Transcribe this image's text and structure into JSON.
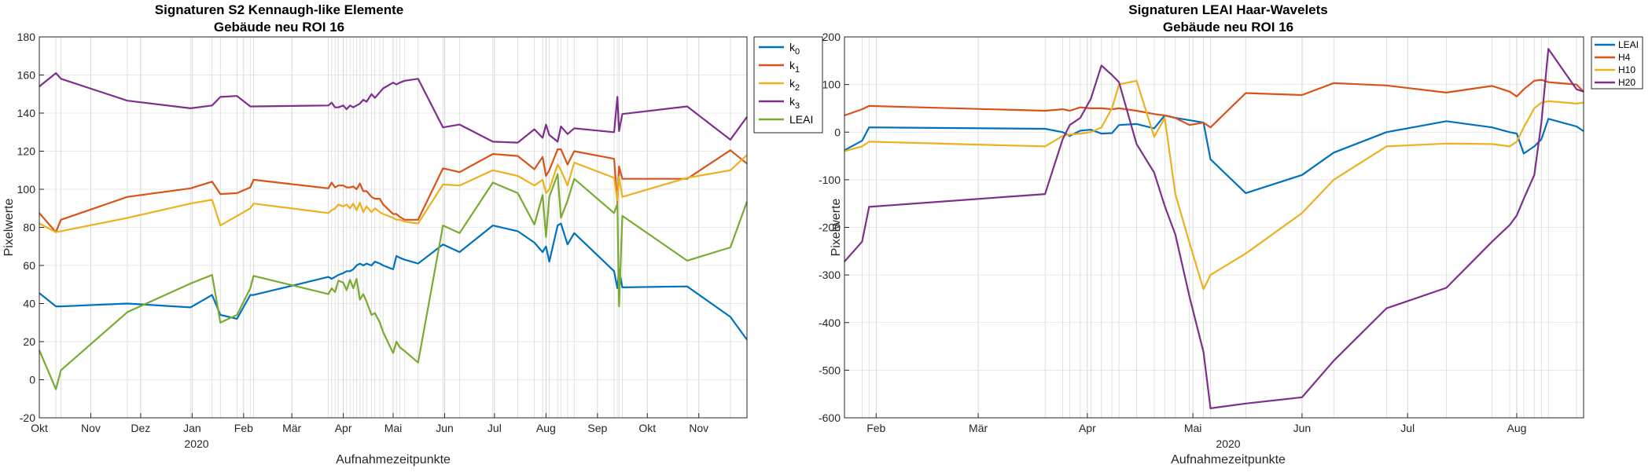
{
  "chart_data": [
    {
      "type": "line",
      "title": "Signaturen S2 Kennaugh-like Elemente",
      "subtitle": "Gebäude neu ROI 16",
      "xlabel": "Aufnahmezeitpunkte",
      "ylabel": "Pixelwerte",
      "x_year_label": "2020",
      "x_unit": "date",
      "xlim": [
        "2019-10-01",
        "2020-11-30"
      ],
      "ylim": [
        -20,
        180
      ],
      "y_ticks": [
        -20,
        0,
        20,
        40,
        60,
        80,
        100,
        120,
        140,
        160,
        180
      ],
      "x_ticks": [
        {
          "date": "2019-10-01",
          "label": "Okt"
        },
        {
          "date": "2019-11-01",
          "label": "Nov"
        },
        {
          "date": "2019-12-01",
          "label": "Dez"
        },
        {
          "date": "2020-01-01",
          "label": "Jan"
        },
        {
          "date": "2020-02-01",
          "label": "Feb"
        },
        {
          "date": "2020-03-01",
          "label": "Mär"
        },
        {
          "date": "2020-04-01",
          "label": "Apr"
        },
        {
          "date": "2020-05-01",
          "label": "Mai"
        },
        {
          "date": "2020-06-01",
          "label": "Jun"
        },
        {
          "date": "2020-07-01",
          "label": "Jul"
        },
        {
          "date": "2020-08-01",
          "label": "Aug"
        },
        {
          "date": "2020-09-01",
          "label": "Sep"
        },
        {
          "date": "2020-10-01",
          "label": "Okt"
        },
        {
          "date": "2020-11-01",
          "label": "Nov"
        }
      ],
      "grid": true,
      "legend_position": "top-right, outside",
      "acquisition_dates": [
        "2019-10-01",
        "2019-10-11",
        "2019-10-14",
        "2019-11-23",
        "2019-12-31",
        "2020-01-13",
        "2020-01-18",
        "2020-01-28",
        "2020-02-05",
        "2020-02-07",
        "2020-03-23",
        "2020-03-25",
        "2020-03-27",
        "2020-03-29",
        "2020-04-01",
        "2020-04-03",
        "2020-04-05",
        "2020-04-07",
        "2020-04-09",
        "2020-04-11",
        "2020-04-13",
        "2020-04-15",
        "2020-04-18",
        "2020-04-20",
        "2020-04-23",
        "2020-04-25",
        "2020-05-01",
        "2020-05-03",
        "2020-05-05",
        "2020-05-08",
        "2020-05-16",
        "2020-05-31",
        "2020-06-10",
        "2020-06-30",
        "2020-07-15",
        "2020-07-25",
        "2020-07-30",
        "2020-08-01",
        "2020-08-03",
        "2020-08-08",
        "2020-08-10",
        "2020-08-14",
        "2020-08-18",
        "2020-09-11",
        "2020-09-13",
        "2020-09-14",
        "2020-09-16",
        "2020-10-25",
        "2020-11-20",
        "2020-11-30"
      ],
      "series": [
        {
          "name": "k0",
          "label_main": "k",
          "label_sub": "0",
          "color": "#0072BD",
          "values": [
            45.5,
            38.5,
            38.5,
            40,
            38,
            44.5,
            34,
            32,
            44.5,
            44.5,
            54,
            53,
            54,
            55,
            56,
            57,
            57,
            58,
            60,
            61,
            60,
            61,
            60,
            62,
            61,
            60,
            58,
            65,
            64,
            63,
            61,
            71,
            67,
            81,
            78,
            72,
            67,
            70,
            62,
            81,
            82,
            71,
            77,
            57,
            48,
            58,
            48.5,
            49,
            33,
            21
          ]
        },
        {
          "name": "k1",
          "label_main": "k",
          "label_sub": "1",
          "color": "#D95319",
          "values": [
            87.5,
            77.5,
            84,
            96,
            100.5,
            104,
            97.5,
            98,
            101,
            105,
            100.5,
            103.5,
            101,
            102,
            102,
            101,
            101,
            101.5,
            100,
            103,
            99,
            99,
            96,
            95,
            95,
            92,
            87,
            87,
            85.5,
            84,
            84,
            111,
            109,
            118.5,
            117.5,
            110.5,
            117,
            107,
            110,
            121,
            121,
            113,
            120,
            116,
            93,
            112,
            105.5,
            105.5,
            120.5,
            113.5
          ]
        },
        {
          "name": "k2",
          "label_main": "k",
          "label_sub": "2",
          "color": "#EDB120",
          "values": [
            82,
            77.5,
            78,
            85,
            92.5,
            94.5,
            81,
            86,
            90,
            92.5,
            87.5,
            89,
            90,
            92,
            91,
            92,
            90,
            92.5,
            89,
            93,
            88,
            91,
            88,
            90,
            88,
            87,
            85,
            84,
            84,
            83,
            82,
            102.5,
            102,
            110,
            107,
            102,
            105,
            98,
            100,
            113,
            110,
            102,
            114,
            106,
            94,
            106.5,
            96,
            106,
            110,
            118
          ]
        },
        {
          "name": "k3",
          "label_main": "k",
          "label_sub": "3",
          "color": "#7E2F8E",
          "values": [
            154,
            161,
            158,
            146.5,
            142.5,
            144,
            148.5,
            149,
            143.5,
            143.5,
            144,
            145.5,
            143,
            143,
            144,
            142,
            144,
            143,
            144,
            145,
            147,
            146,
            150,
            148,
            151,
            153,
            156,
            155,
            156,
            157,
            158,
            132.5,
            134,
            125,
            124.5,
            131.5,
            127,
            134,
            128.5,
            125,
            133,
            129,
            132,
            130,
            148.5,
            130.5,
            139.5,
            143.5,
            126,
            138
          ]
        },
        {
          "name": "LEAI",
          "label_main": "LEAI",
          "label_sub": "",
          "color": "#77AC30",
          "values": [
            15.5,
            -5,
            5,
            35.5,
            50.5,
            55,
            30,
            34,
            48,
            54.5,
            45,
            48,
            46,
            52,
            51,
            47,
            52.5,
            48,
            53,
            42,
            45,
            41,
            34,
            35,
            30,
            25,
            14,
            20,
            17,
            15,
            9,
            81,
            77,
            103.5,
            98,
            81.5,
            97,
            75,
            96,
            108,
            85,
            94,
            105.5,
            87.5,
            92.5,
            38.5,
            86,
            62.5,
            69.5,
            93.5
          ]
        }
      ],
      "legend_entries": [
        {
          "main": "k",
          "sub": "0",
          "color": "#0072BD"
        },
        {
          "main": "k",
          "sub": "1",
          "color": "#D95319"
        },
        {
          "main": "k",
          "sub": "2",
          "color": "#EDB120"
        },
        {
          "main": "k",
          "sub": "3",
          "color": "#7E2F8E"
        },
        {
          "main": "LEAI",
          "sub": "",
          "color": "#77AC30"
        }
      ]
    },
    {
      "type": "line",
      "title": "Signaturen LEAI Haar-Wavelets",
      "subtitle": "Gebäude neu ROI 16",
      "xlabel": "Aufnahmezeitpunkte",
      "ylabel": "Pixelwerte",
      "x_year_label": "2020",
      "x_unit": "date",
      "xlim": [
        "2020-01-23",
        "2020-08-20"
      ],
      "ylim": [
        -600,
        200
      ],
      "y_ticks": [
        -600,
        -500,
        -400,
        -300,
        -200,
        -100,
        0,
        100,
        200
      ],
      "x_ticks": [
        {
          "date": "2020-02-01",
          "label": "Feb"
        },
        {
          "date": "2020-03-01",
          "label": "Mär"
        },
        {
          "date": "2020-04-01",
          "label": "Apr"
        },
        {
          "date": "2020-05-01",
          "label": "Mai"
        },
        {
          "date": "2020-06-01",
          "label": "Jun"
        },
        {
          "date": "2020-07-01",
          "label": "Jul"
        },
        {
          "date": "2020-08-01",
          "label": "Aug"
        }
      ],
      "grid": true,
      "legend_position": "top-right, outside",
      "acquisition_dates": [
        "2020-01-23",
        "2020-01-28",
        "2020-01-30",
        "2020-03-20",
        "2020-03-25",
        "2020-03-27",
        "2020-03-30",
        "2020-04-02",
        "2020-04-05",
        "2020-04-08",
        "2020-04-10",
        "2020-04-15",
        "2020-04-20",
        "2020-04-23",
        "2020-04-26",
        "2020-04-30",
        "2020-05-04",
        "2020-05-06",
        "2020-05-16",
        "2020-06-01",
        "2020-06-10",
        "2020-06-25",
        "2020-07-12",
        "2020-07-25",
        "2020-07-30",
        "2020-08-01",
        "2020-08-03",
        "2020-08-06",
        "2020-08-08",
        "2020-08-10",
        "2020-08-18",
        "2020-08-20"
      ],
      "series": [
        {
          "name": "LEAI",
          "color": "#0072BD",
          "values": [
            -38,
            -18,
            10,
            7,
            0,
            -8,
            3,
            5,
            -3,
            -2,
            15,
            17,
            8,
            35,
            30,
            25,
            20,
            -57,
            -128,
            -90,
            -43,
            0,
            23,
            10,
            0,
            -3,
            -45,
            -30,
            -15,
            28,
            12,
            2
          ]
        },
        {
          "name": "H4",
          "color": "#D95319",
          "values": [
            35,
            48,
            55,
            45,
            48,
            45,
            52,
            50,
            50,
            48,
            50,
            45,
            38,
            35,
            30,
            15,
            20,
            10,
            82,
            78,
            103,
            98,
            83,
            97,
            85,
            75,
            90,
            108,
            110,
            105,
            100,
            85
          ]
        },
        {
          "name": "H10",
          "color": "#EDB120",
          "values": [
            -40,
            -30,
            -20,
            -30,
            -8,
            -5,
            -3,
            0,
            10,
            50,
            100,
            108,
            -10,
            30,
            -130,
            -232,
            -330,
            -300,
            -255,
            -170,
            -100,
            -30,
            -24,
            -25,
            -30,
            -20,
            10,
            50,
            62,
            65,
            60,
            62
          ]
        },
        {
          "name": "H20",
          "color": "#7E2F8E",
          "values": [
            -272,
            -230,
            -157,
            -130,
            -15,
            15,
            30,
            70,
            140,
            120,
            105,
            -25,
            -85,
            -155,
            -215,
            -345,
            -462,
            -580,
            -570,
            -557,
            -480,
            -370,
            -327,
            -230,
            -195,
            -175,
            -140,
            -90,
            20,
            175,
            90,
            85
          ]
        }
      ]
    }
  ]
}
